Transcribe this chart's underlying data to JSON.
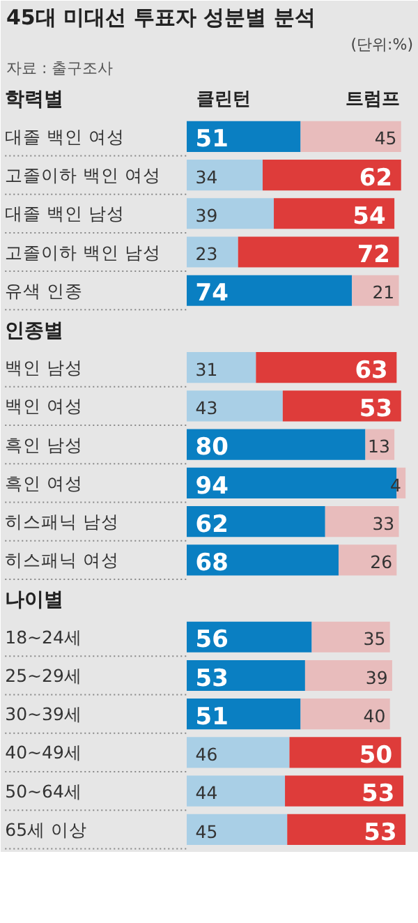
{
  "chart_data": {
    "type": "bar",
    "orientation": "horizontal",
    "stacked": true,
    "data_labels": true,
    "legend": false,
    "tick_labels": false,
    "title": "45대 미대선 투표자 성분별 분석",
    "annotations": [
      "(단위:%)",
      "자료 : 출구조사",
      "학력별",
      "인종별",
      "나이별"
    ],
    "categories": [
      null,
      "대졸 백인 여성",
      "고졸이하 백인 여성",
      "대졸 백인 남성",
      "고졸이하 백인 남성",
      "유색 인종",
      null,
      "백인 남성",
      "백인 여성",
      "흑인 남성",
      "흑인 여성",
      "히스패닉 남성",
      "히스패닉 여성",
      null,
      "18~24세",
      "25~29세",
      "30~39세",
      "40~49세",
      "50~64세",
      "65세 이상"
    ],
    "series": [
      {
        "name": "클린턴",
        "values": [
          null,
          51,
          34,
          39,
          23,
          74,
          null,
          31,
          43,
          80,
          94,
          62,
          68,
          null,
          56,
          53,
          51,
          46,
          44,
          45
        ],
        "colors": [
          null,
          "#0a7fc2",
          "#a9cfe6",
          "#a9cfe6",
          "#a9cfe6",
          "#0a7fc2",
          null,
          "#a9cfe6",
          "#a9cfe6",
          "#0a7fc2",
          "#0a7fc2",
          "#0a7fc2",
          "#0a7fc2",
          null,
          "#0a7fc2",
          "#0a7fc2",
          "#0a7fc2",
          "#a9cfe6",
          "#a9cfe6",
          "#a9cfe6"
        ]
      },
      {
        "name": "트럼프",
        "values": [
          null,
          45,
          62,
          54,
          72,
          21,
          null,
          63,
          53,
          13,
          4,
          33,
          26,
          null,
          35,
          39,
          40,
          50,
          53,
          53
        ],
        "colors": [
          null,
          "#e8bcbc",
          "#de3c3a",
          "#de3c3a",
          "#de3c3a",
          "#e8bcbc",
          null,
          "#de3c3a",
          "#de3c3a",
          "#e8bcbc",
          "#e8bcbc",
          "#e8bcbc",
          "#e8bcbc",
          null,
          "#e8bcbc",
          "#e8bcbc",
          "#e8bcbc",
          "#de3c3a",
          "#de3c3a",
          "#de3c3a"
        ]
      }
    ]
  }
}
